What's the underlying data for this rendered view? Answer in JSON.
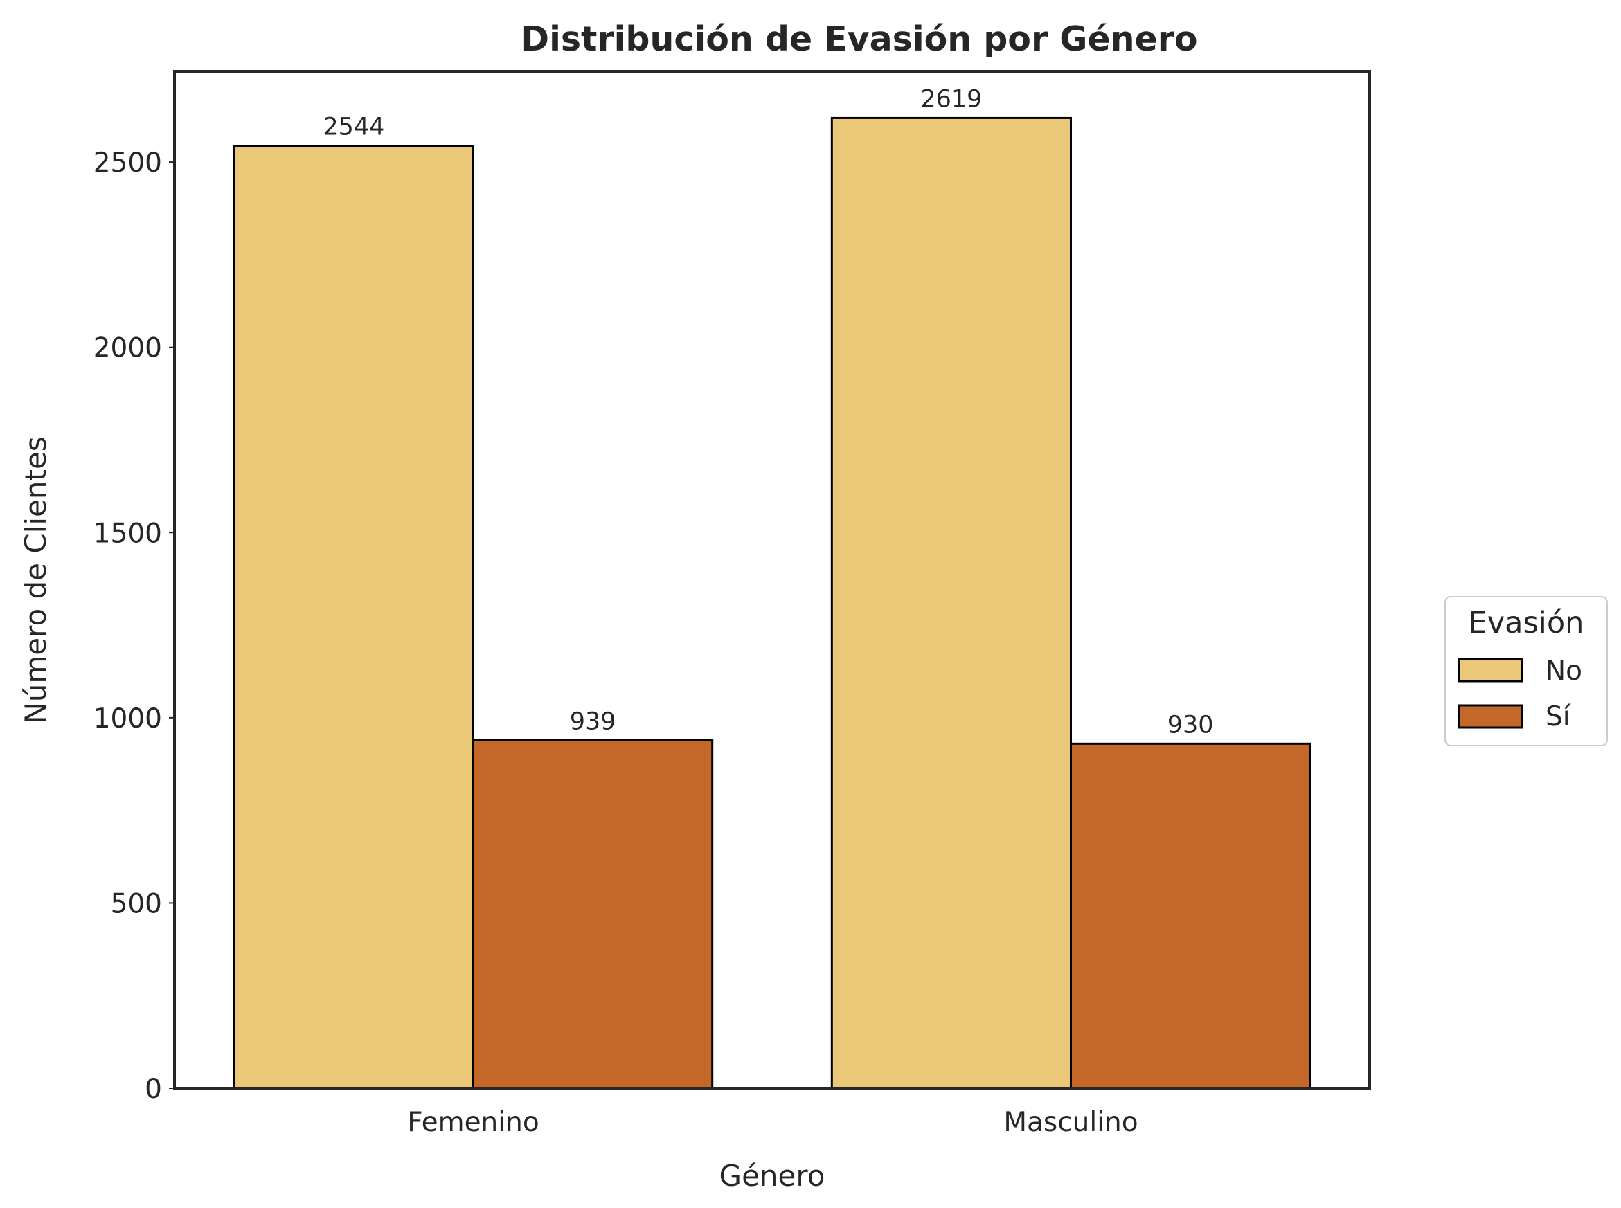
{
  "chart_data": {
    "type": "bar",
    "title": "Distribución de Evasión por Género",
    "xlabel": "Género",
    "ylabel": "Número de Clientes",
    "categories": [
      "Femenino",
      "Masculino"
    ],
    "series": [
      {
        "name": "No",
        "values": [
          2544,
          2619
        ],
        "color": "#EAC877"
      },
      {
        "name": "Sí",
        "values": [
          939,
          930
        ],
        "color": "#C4682A"
      }
    ],
    "ylim": [
      0,
      2745
    ],
    "yticks": [
      0,
      500,
      1000,
      1500,
      2000,
      2500
    ],
    "grid": false,
    "legend": {
      "title": "Evasión",
      "placement": "right"
    }
  }
}
